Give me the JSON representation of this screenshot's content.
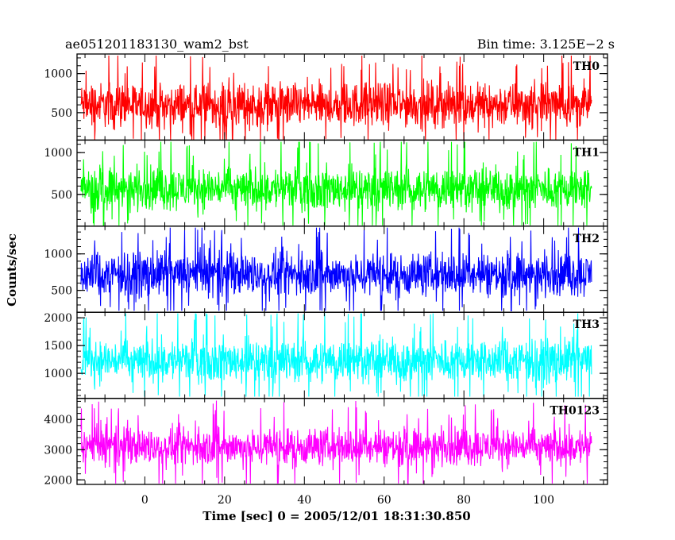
{
  "chart_data": {
    "type": "line",
    "title_left": "ae051201183130_wam2_bst",
    "title_right": "Bin time: 3.125E−2 s",
    "xlabel": "Time [sec] 0 = 2005/12/01 18:31:30.850",
    "ylabel": "Counts/sec",
    "xlim": [
      -17,
      116
    ],
    "x_range_data": [
      -16,
      112
    ],
    "x_ticks": [
      0,
      20,
      40,
      60,
      80,
      100
    ],
    "x_tick_labels": [
      "0",
      "20",
      "40",
      "60",
      "80",
      "100"
    ],
    "x_minor_step": 5,
    "grid": false,
    "panels": [
      {
        "label": "TH0",
        "color": "#ff0000",
        "ylim": [
          150,
          1250
        ],
        "y_ticks": [
          500,
          1000
        ],
        "y_tick_labels": [
          "500",
          "1000"
        ],
        "y_minor_step": 100,
        "base": 600,
        "spread": 220,
        "min": 150,
        "max": 1230
      },
      {
        "label": "TH1",
        "color": "#00ff00",
        "ylim": [
          120,
          1150
        ],
        "y_ticks": [
          500,
          1000
        ],
        "y_tick_labels": [
          "500",
          "1000"
        ],
        "y_minor_step": 100,
        "base": 570,
        "spread": 200,
        "min": 130,
        "max": 1130
      },
      {
        "label": "TH2",
        "color": "#0000ff",
        "ylim": [
          200,
          1380
        ],
        "y_ticks": [
          500,
          1000
        ],
        "y_tick_labels": [
          "500",
          "1000"
        ],
        "y_minor_step": 100,
        "base": 720,
        "spread": 230,
        "min": 220,
        "max": 1360
      },
      {
        "label": "TH3",
        "color": "#00ffff",
        "ylim": [
          550,
          2100
        ],
        "y_ticks": [
          1000,
          1500,
          2000
        ],
        "y_tick_labels": [
          "1000",
          "1500",
          "2000"
        ],
        "y_minor_step": 100,
        "base": 1230,
        "spread": 300,
        "min": 580,
        "max": 2080
      },
      {
        "label": "TH0123",
        "color": "#ff00ff",
        "ylim": [
          1850,
          4700
        ],
        "y_ticks": [
          2000,
          3000,
          4000
        ],
        "y_tick_labels": [
          "2000",
          "3000",
          "4000"
        ],
        "y_minor_step": 200,
        "base": 3100,
        "spread": 480,
        "min": 1880,
        "max": 4650
      }
    ]
  }
}
